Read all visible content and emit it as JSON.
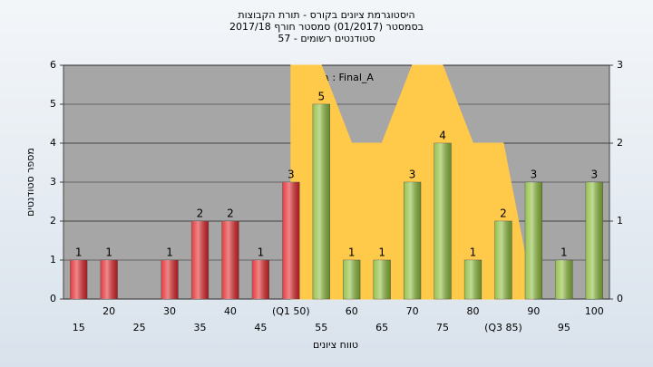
{
  "chart_data": {
    "type": "bar",
    "title": "היסטוגרמת ציונים בקורס - תורת הקבוצות",
    "subtitle": "בסמסטר  (01/2017)  סמסטר חורף  2017/18",
    "subtitle_2": "סטודנטים רשומים - 57",
    "annotation": "במשימה : Final_A",
    "x_label": "טווח ציונים",
    "y_label": "מספר סטודנטים",
    "categories": [
      "15",
      "20",
      "25",
      "30",
      "35",
      "40",
      "45",
      "(Q1 50)",
      "55",
      "60",
      "65",
      "70",
      "75",
      "80",
      "(Q3 85)",
      "90",
      "95",
      "100"
    ],
    "series": [
      {
        "color": "#e0262a",
        "values": [
          1,
          1,
          null,
          1,
          2,
          2,
          1,
          3,
          null,
          null,
          null,
          null,
          null,
          null,
          null,
          null,
          null,
          null
        ]
      },
      {
        "color": "#8cbc3c",
        "values": [
          null,
          null,
          null,
          null,
          null,
          null,
          null,
          null,
          5,
          1,
          1,
          3,
          4,
          1,
          2,
          3,
          1,
          3
        ]
      },
      {
        "type": "area",
        "axis": "y2",
        "color": "#ffc94a",
        "values": [
          null,
          null,
          null,
          null,
          null,
          null,
          null,
          3,
          3,
          2,
          2,
          3,
          3,
          2,
          2,
          0,
          null,
          null
        ]
      }
    ],
    "ylim": [
      0,
      6
    ],
    "yticks": [
      0,
      1,
      2,
      3,
      4,
      5,
      6
    ],
    "y2lim": [
      0,
      3
    ],
    "y2ticks": [
      0,
      1,
      2,
      3
    ],
    "grid": true
  }
}
